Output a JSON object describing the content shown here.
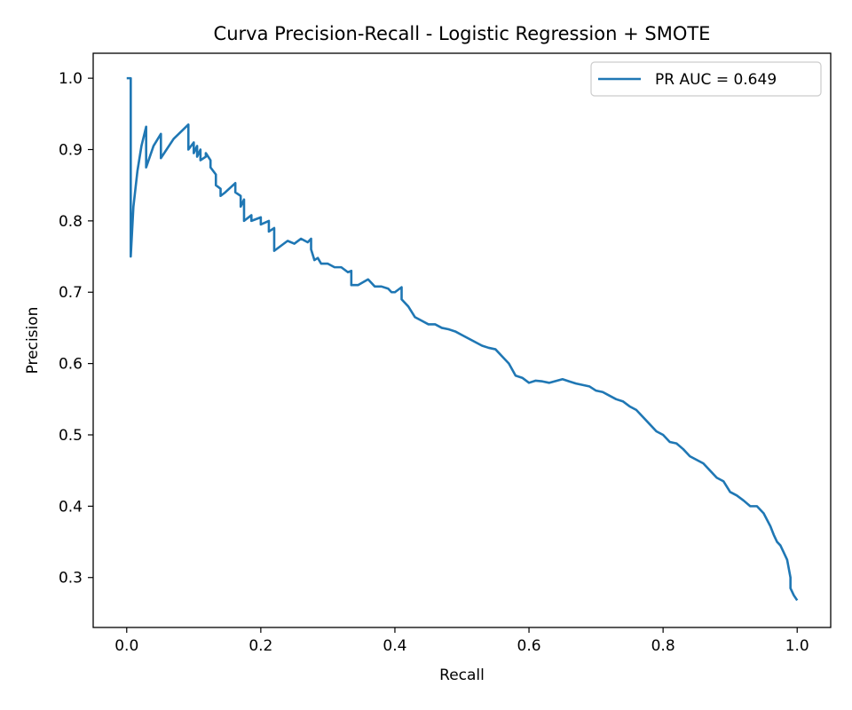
{
  "chart_data": {
    "type": "line",
    "title": "Curva Precision-Recall - Logistic Regression + SMOTE",
    "xlabel": "Recall",
    "ylabel": "Precision",
    "xlim": [
      -0.05,
      1.05
    ],
    "ylim": [
      0.23,
      1.035
    ],
    "grid": false,
    "legend_position": "upper right",
    "x_ticks": [
      "0.0",
      "0.2",
      "0.4",
      "0.6",
      "0.8",
      "1.0"
    ],
    "y_ticks": [
      "0.3",
      "0.4",
      "0.5",
      "0.6",
      "0.7",
      "0.8",
      "0.9",
      "1.0"
    ],
    "series": [
      {
        "name": "PR AUC = 0.649",
        "color": "#1f77b4",
        "x": [
          0.0,
          0.006,
          0.006,
          0.006,
          0.01,
          0.016,
          0.022,
          0.029,
          0.029,
          0.04,
          0.051,
          0.051,
          0.07,
          0.092,
          0.092,
          0.1,
          0.1,
          0.105,
          0.105,
          0.11,
          0.11,
          0.118,
          0.118,
          0.125,
          0.125,
          0.133,
          0.133,
          0.14,
          0.14,
          0.147,
          0.162,
          0.162,
          0.17,
          0.17,
          0.175,
          0.175,
          0.186,
          0.186,
          0.2,
          0.2,
          0.212,
          0.212,
          0.22,
          0.22,
          0.23,
          0.24,
          0.25,
          0.26,
          0.27,
          0.275,
          0.275,
          0.28,
          0.285,
          0.29,
          0.3,
          0.31,
          0.32,
          0.33,
          0.335,
          0.335,
          0.345,
          0.36,
          0.37,
          0.38,
          0.39,
          0.395,
          0.4,
          0.41,
          0.41,
          0.42,
          0.43,
          0.44,
          0.45,
          0.46,
          0.47,
          0.48,
          0.49,
          0.5,
          0.51,
          0.52,
          0.53,
          0.54,
          0.55,
          0.56,
          0.57,
          0.58,
          0.59,
          0.6,
          0.61,
          0.62,
          0.63,
          0.65,
          0.66,
          0.67,
          0.68,
          0.69,
          0.7,
          0.71,
          0.72,
          0.73,
          0.74,
          0.75,
          0.76,
          0.77,
          0.78,
          0.79,
          0.8,
          0.81,
          0.82,
          0.83,
          0.84,
          0.85,
          0.86,
          0.87,
          0.88,
          0.89,
          0.9,
          0.91,
          0.92,
          0.93,
          0.94,
          0.95,
          0.96,
          0.965,
          0.97,
          0.975,
          0.98,
          0.985,
          0.99,
          0.99,
          0.995,
          1.0
        ],
        "y": [
          1.0,
          1.0,
          0.75,
          0.75,
          0.82,
          0.87,
          0.905,
          0.932,
          0.875,
          0.905,
          0.922,
          0.888,
          0.915,
          0.935,
          0.9,
          0.91,
          0.895,
          0.905,
          0.89,
          0.9,
          0.885,
          0.89,
          0.895,
          0.885,
          0.875,
          0.865,
          0.85,
          0.845,
          0.835,
          0.84,
          0.853,
          0.84,
          0.835,
          0.82,
          0.83,
          0.8,
          0.808,
          0.8,
          0.805,
          0.795,
          0.8,
          0.785,
          0.79,
          0.758,
          0.765,
          0.772,
          0.768,
          0.775,
          0.77,
          0.775,
          0.76,
          0.745,
          0.748,
          0.74,
          0.74,
          0.735,
          0.735,
          0.728,
          0.73,
          0.71,
          0.71,
          0.718,
          0.708,
          0.708,
          0.705,
          0.7,
          0.7,
          0.707,
          0.69,
          0.68,
          0.665,
          0.66,
          0.655,
          0.655,
          0.65,
          0.648,
          0.645,
          0.64,
          0.635,
          0.63,
          0.625,
          0.622,
          0.62,
          0.61,
          0.6,
          0.583,
          0.58,
          0.573,
          0.576,
          0.575,
          0.573,
          0.578,
          0.575,
          0.572,
          0.57,
          0.568,
          0.562,
          0.56,
          0.555,
          0.55,
          0.547,
          0.54,
          0.535,
          0.525,
          0.515,
          0.505,
          0.5,
          0.49,
          0.488,
          0.48,
          0.47,
          0.465,
          0.46,
          0.45,
          0.44,
          0.435,
          0.42,
          0.415,
          0.408,
          0.4,
          0.4,
          0.39,
          0.372,
          0.36,
          0.35,
          0.345,
          0.335,
          0.325,
          0.3,
          0.285,
          0.275,
          0.268
        ]
      }
    ]
  }
}
